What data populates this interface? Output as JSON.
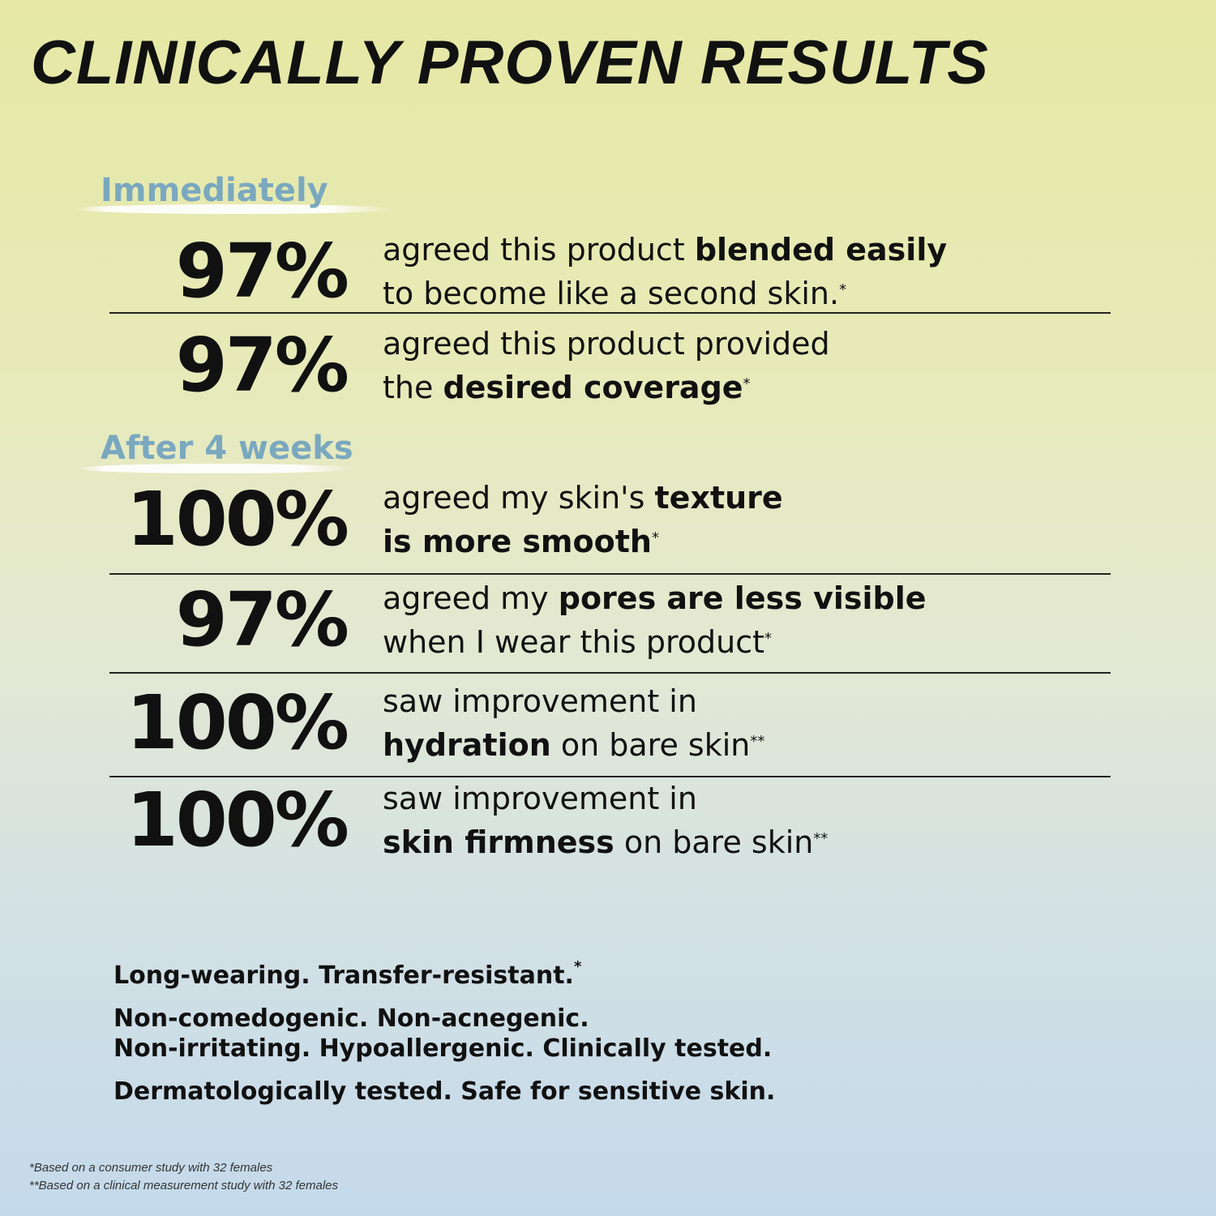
{
  "title": "CLINICALLY PROVEN RESULTS",
  "sections": {
    "immediately": "Immediately",
    "after": "After 4 weeks"
  },
  "colors": {
    "section": "#7aa8bf",
    "text": "#111111",
    "bg_top": "#e6e8a4",
    "bg_bottom": "#c4d9ea"
  },
  "results": [
    {
      "percent": "97%",
      "lines": [
        [
          {
            "t": "agreed this product "
          },
          {
            "t": "blended easily",
            "b": true
          }
        ],
        [
          {
            "t": "to become like a second skin."
          },
          {
            "t": "*",
            "sup": true
          }
        ]
      ]
    },
    {
      "percent": "97%",
      "lines": [
        [
          {
            "t": "agreed this product provided"
          }
        ],
        [
          {
            "t": "the "
          },
          {
            "t": "desired coverage",
            "b": true
          },
          {
            "t": "*",
            "sup": true
          }
        ]
      ]
    },
    {
      "percent": "100%",
      "lines": [
        [
          {
            "t": "agreed my skin's "
          },
          {
            "t": "texture",
            "b": true
          }
        ],
        [
          {
            "t": "is more smooth",
            "b": true
          },
          {
            "t": "*",
            "sup": true
          }
        ]
      ]
    },
    {
      "percent": "97%",
      "lines": [
        [
          {
            "t": "agreed my "
          },
          {
            "t": "pores are less visible",
            "b": true
          }
        ],
        [
          {
            "t": "when I wear this product"
          },
          {
            "t": "*",
            "sup": true
          }
        ]
      ]
    },
    {
      "percent": "100%",
      "lines": [
        [
          {
            "t": "saw improvement in"
          }
        ],
        [
          {
            "t": "hydration",
            "b": true
          },
          {
            "t": " on bare skin"
          },
          {
            "t": "**",
            "sup": true
          }
        ]
      ]
    },
    {
      "percent": "100%",
      "lines": [
        [
          {
            "t": "saw improvement in"
          }
        ],
        [
          {
            "t": "skin firmness",
            "b": true
          },
          {
            "t": " on bare skin"
          },
          {
            "t": "**",
            "sup": true
          }
        ]
      ]
    }
  ],
  "claims": [
    {
      "text": "Long-wearing. Transfer-resistant.",
      "sup": "*"
    },
    {
      "text": "Non-comedogenic. Non-acnegenic.",
      "sup": ""
    },
    {
      "text": "Non-irritating. Hypoallergenic. Clinically tested.",
      "sup": ""
    },
    {
      "text": "Dermatologically tested. Safe for sensitive skin.",
      "sup": ""
    }
  ],
  "footnotes": [
    "*Based on a consumer study with 32 females",
    "**Based on a clinical measurement study with 32 females"
  ]
}
